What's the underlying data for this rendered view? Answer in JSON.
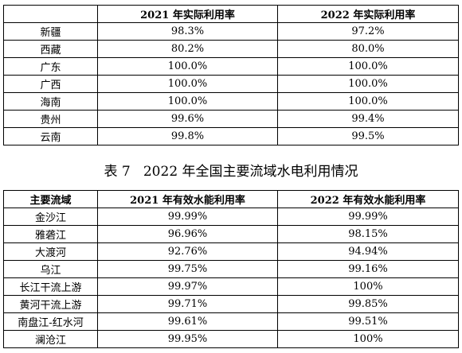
{
  "table_top": {
    "headers": [
      "",
      "2021 年实际利用率",
      "2022 年实际利用率"
    ],
    "rows": [
      [
        "新疆",
        "98.3%",
        "97.2%"
      ],
      [
        "西藏",
        "80.2%",
        "80.0%"
      ],
      [
        "广东",
        "100.0%",
        "100.0%"
      ],
      [
        "广西",
        "100.0%",
        "100.0%"
      ],
      [
        "海南",
        "100.0%",
        "100.0%"
      ],
      [
        "贵州",
        "99.6%",
        "99.4%"
      ],
      [
        "云南",
        "99.8%",
        "99.5%"
      ]
    ]
  },
  "caption": "表 7   2022 年全国主要流域水电利用情况",
  "table_bottom": {
    "headers": [
      "主要流域",
      "2021 年有效水能利用率",
      "2022 年有效水能利用率"
    ],
    "rows": [
      [
        "金沙江",
        "99.99%",
        "99.99%"
      ],
      [
        "雅砻江",
        "96.96%",
        "98.15%"
      ],
      [
        "大渡河",
        "92.76%",
        "94.94%"
      ],
      [
        "乌江",
        "99.75%",
        "99.16%"
      ],
      [
        "长江干流上游",
        "99.97%",
        "100%"
      ],
      [
        "黄河干流上游",
        "99.71%",
        "99.85%"
      ],
      [
        "南盘江-红水河",
        "99.61%",
        "99.51%"
      ],
      [
        "澜沧江",
        "99.95%",
        "100%"
      ]
    ]
  }
}
